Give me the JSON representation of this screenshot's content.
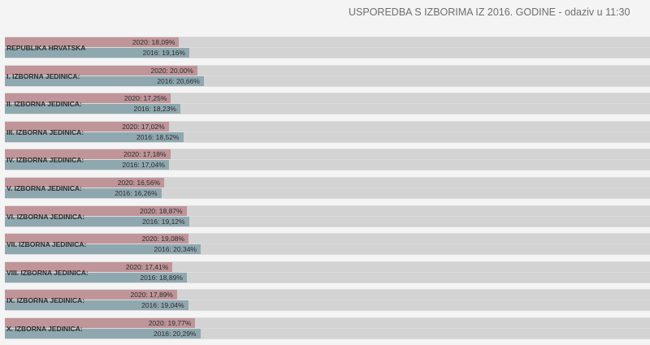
{
  "header": {
    "title": "USPOREDBA S IZBORIMA IZ 2016. GODINE - odaziv u 11:30"
  },
  "colors": {
    "year_2020": "#bf9599",
    "year_2016": "#8fa8b0",
    "track": "#d3d3d3"
  },
  "chart_data": {
    "type": "bar",
    "orientation": "horizontal",
    "title": "USPOREDBA S IZBORIMA IZ 2016. GODINE - odaziv u 11:30",
    "unit": "%",
    "xlim": [
      0,
      67
    ],
    "categories": [
      "REPUBLIKA HRVATSKA",
      "I. IZBORNA JEDINICA:",
      "II. IZBORNA JEDINICA:",
      "III. IZBORNA JEDINICA:",
      "IV. IZBORNA JEDINICA:",
      "V. IZBORNA JEDINICA:",
      "VI. IZBORNA JEDINICA:",
      "VII. IZBORNA JEDINICA:",
      "VIII. IZBORNA JEDINICA:",
      "IX. IZBORNA JEDINICA:",
      "X. IZBORNA JEDINICA:"
    ],
    "series": [
      {
        "name": "2020",
        "values": [
          18.09,
          20.0,
          17.25,
          17.02,
          17.18,
          16.56,
          18.87,
          19.08,
          17.41,
          17.89,
          19.77
        ],
        "labels": [
          "2020: 18,09%",
          "2020: 20,00%",
          "2020: 17,25%",
          "2020: 17,02%",
          "2020: 17,18%",
          "2020: 16,56%",
          "2020: 18,87%",
          "2020: 19,08%",
          "2020: 17,41%",
          "2020: 17,89%",
          "2020: 19,77%"
        ]
      },
      {
        "name": "2016",
        "values": [
          19.16,
          20.66,
          18.23,
          18.52,
          17.04,
          16.26,
          19.12,
          20.34,
          18.89,
          19.04,
          20.29
        ],
        "labels": [
          "2016: 19,16%",
          "2016: 20,66%",
          "2016: 18,23%",
          "2016: 18,52%",
          "2016: 17,04%",
          "2016: 16,26%",
          "2016: 19,12%",
          "2016: 20,34%",
          "2016: 18,89%",
          "2016: 19,04%",
          "2016: 20,29%"
        ]
      }
    ]
  }
}
